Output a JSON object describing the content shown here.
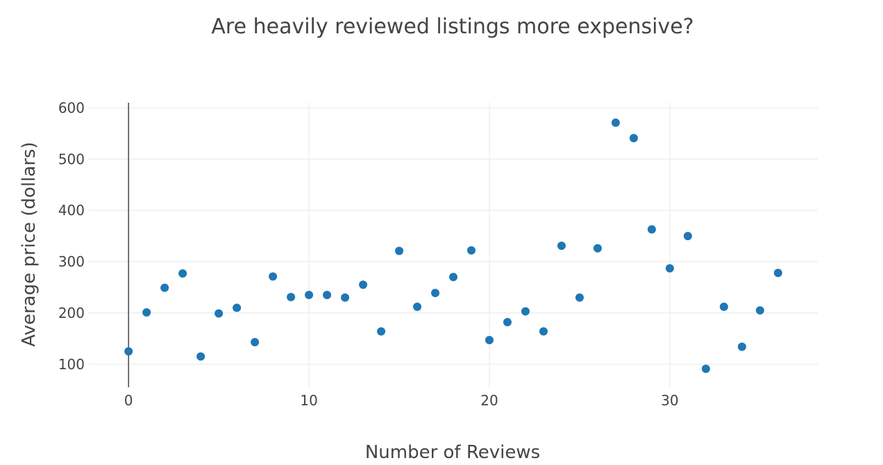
{
  "chart_data": {
    "type": "scatter",
    "title": "Are heavily reviewed listings more expensive?",
    "xlabel": "Number of Reviews",
    "ylabel": "Average price (dollars)",
    "xlim": [
      -2.2,
      38.2
    ],
    "ylim": [
      55,
      610
    ],
    "xticks": [
      0,
      10,
      20,
      30
    ],
    "yticks": [
      100,
      200,
      300,
      400,
      500,
      600
    ],
    "grid": true,
    "marker_color": "#1f77b4",
    "series": [
      {
        "x": [
          0,
          1,
          2,
          3,
          4,
          5,
          6,
          7,
          8,
          9,
          10,
          11,
          12,
          13,
          14,
          15,
          16,
          17,
          18,
          19,
          20,
          21,
          22,
          23,
          24,
          25,
          26,
          27,
          28,
          29,
          30,
          31,
          32,
          33,
          34,
          35,
          36
        ],
        "y": [
          125,
          201,
          249,
          277,
          115,
          199,
          210,
          143,
          271,
          231,
          235,
          235,
          230,
          255,
          164,
          321,
          212,
          239,
          270,
          322,
          147,
          182,
          203,
          164,
          331,
          230,
          326,
          571,
          541,
          363,
          287,
          350,
          91,
          212,
          134,
          205,
          278
        ]
      }
    ]
  }
}
